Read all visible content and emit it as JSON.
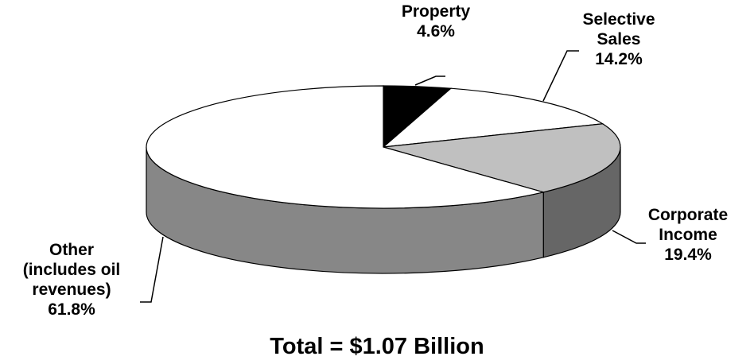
{
  "chart_data": {
    "type": "pie3d",
    "title": "Total = $1.07 Billion",
    "categories": [
      "Property",
      "Selective Sales",
      "Corporate Income",
      "Other (includes oil revenues)"
    ],
    "values": [
      4.6,
      14.2,
      19.4,
      61.8
    ],
    "value_labels": [
      "4.6%",
      "14.2%",
      "19.4%",
      "61.8%"
    ],
    "colors": [
      "#000000",
      "#ffffff",
      "#c0c0c0",
      "#ffffff"
    ]
  }
}
